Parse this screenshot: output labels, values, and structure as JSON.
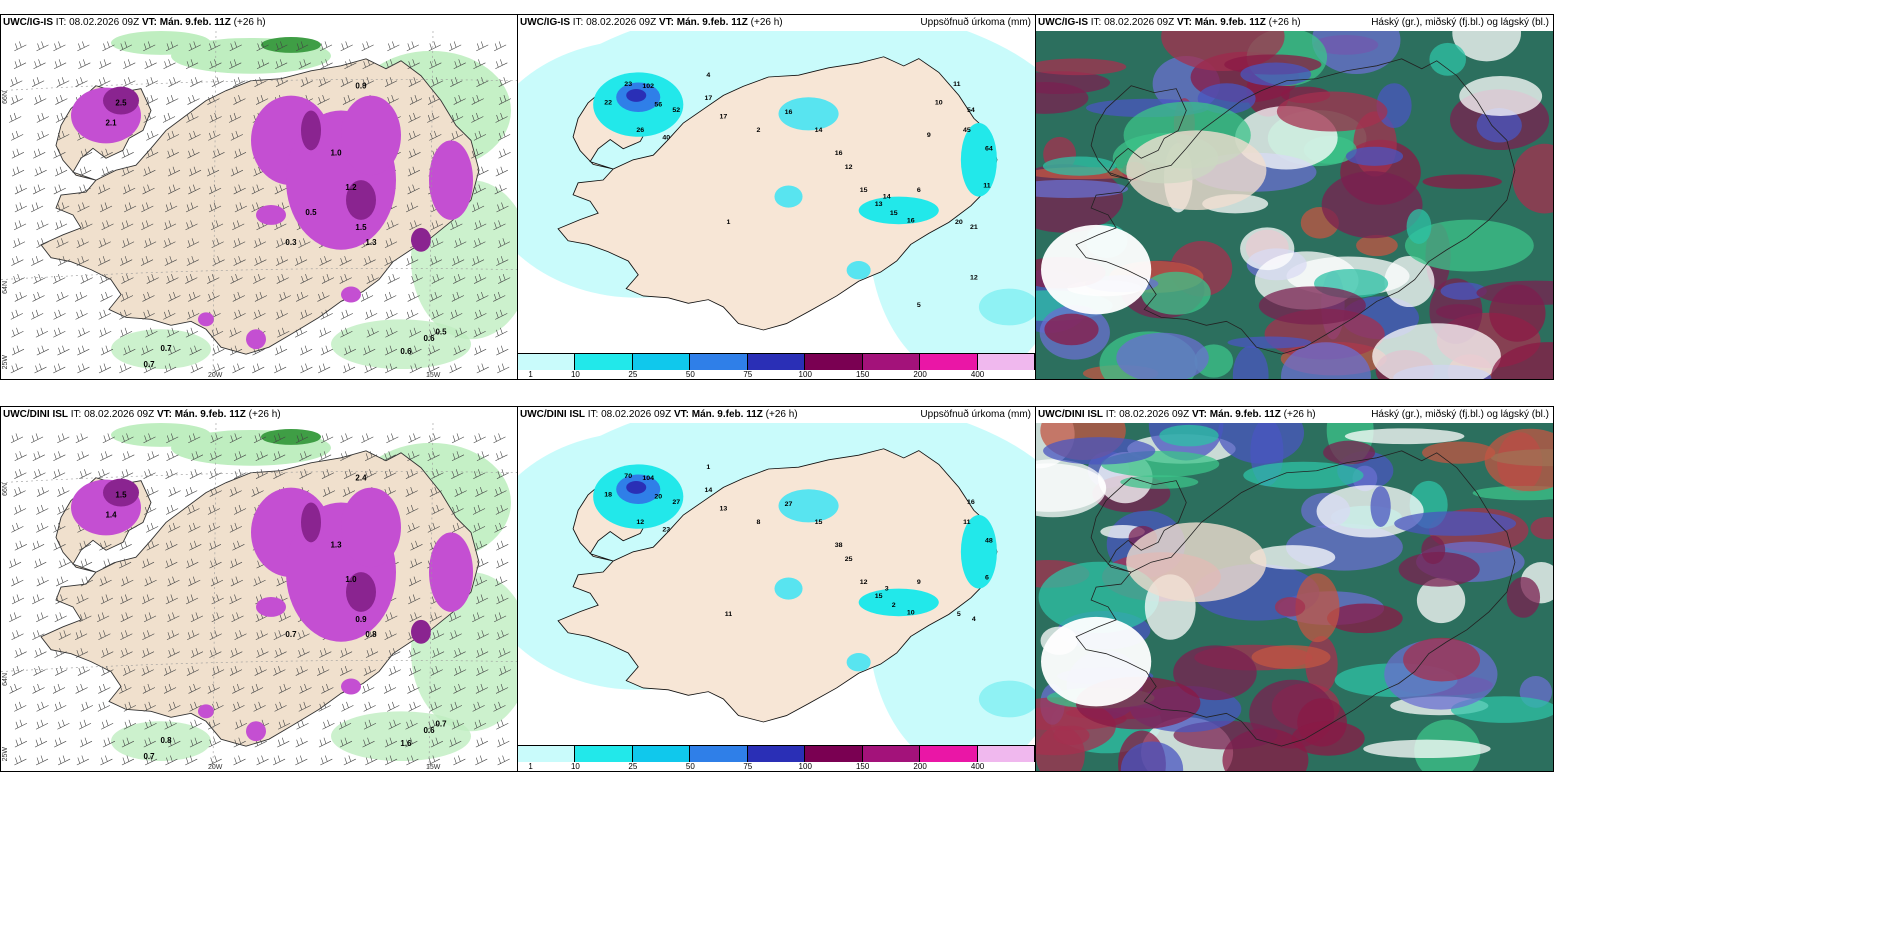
{
  "panels": [
    {
      "model": "UWC/IG-IS",
      "it_label": "IT:",
      "it_value": "08.02.2026 09Z",
      "vt_label": "VT:",
      "vt_value": "Mán. 9.feb. 11Z",
      "lead": "(+26 h)",
      "right": "",
      "type": "snow"
    },
    {
      "model": "UWC/IG-IS",
      "it_label": "IT:",
      "it_value": "08.02.2026 09Z",
      "vt_label": "VT:",
      "vt_value": "Mán. 9.feb. 11Z",
      "lead": "(+26 h)",
      "right": "Uppsöfnuð úrkoma (mm)",
      "type": "precip"
    },
    {
      "model": "UWC/IG-IS",
      "it_label": "IT:",
      "it_value": "08.02.2026 09Z",
      "vt_label": "VT:",
      "vt_value": "Mán. 9.feb. 11Z",
      "lead": "(+26 h)",
      "right": "Háský (gr.), miðský (fj.bl.) og lágský (bl.)",
      "type": "cloud"
    },
    {
      "model": "UWC/DINI ISL",
      "it_label": "IT:",
      "it_value": "08.02.2026 09Z",
      "vt_label": "VT:",
      "vt_value": "Mán. 9.feb. 11Z",
      "lead": "(+26 h)",
      "right": "",
      "type": "snow"
    },
    {
      "model": "UWC/DINI ISL",
      "it_label": "IT:",
      "it_value": "08.02.2026 09Z",
      "vt_label": "VT:",
      "vt_value": "Mán. 9.feb. 11Z",
      "lead": "(+26 h)",
      "right": "Uppsöfnuð úrkoma (mm)",
      "type": "precip"
    },
    {
      "model": "UWC/DINI ISL",
      "it_label": "IT:",
      "it_value": "08.02.2026 09Z",
      "vt_label": "VT:",
      "vt_value": "Mán. 9.feb. 11Z",
      "lead": "(+26 h)",
      "right": "Háský (gr.), miðský (fj.bl.) og lágský (bl.)",
      "type": "cloud"
    }
  ],
  "axis_labels": {
    "lat_66": "66N",
    "lat_64": "64N",
    "lon_25": "25W",
    "lon_20": "20W",
    "lon_15": "15W"
  },
  "colorbar": {
    "ticks": [
      "1",
      "10",
      "25",
      "50",
      "75",
      "100",
      "150",
      "200",
      "400"
    ],
    "colors": [
      "#c9fbfb",
      "#22e8ea",
      "#10c8ec",
      "#2f7fe8",
      "#2a2fb6",
      "#7a0052",
      "#a3127a",
      "#ea16a6",
      "#f0b8ee"
    ]
  },
  "snow_values_top": [
    "0.7",
    "0.7",
    "0.5",
    "0.6",
    "0.6",
    "0.9",
    "1.0",
    "1.2",
    "1.5",
    "2.5",
    "2.1",
    "0.3",
    "1.3",
    "0.5"
  ],
  "snow_values_bottom": [
    "0.8",
    "0.7",
    "0.7",
    "0.6",
    "1.6",
    "2.4",
    "1.3",
    "1.0",
    "0.9",
    "1.5",
    "1.4",
    "0.7",
    "0.8"
  ],
  "precip_values_top": [
    "23",
    "102",
    "56",
    "52",
    "22",
    "26",
    "40",
    "17",
    "17",
    "16",
    "14",
    "16",
    "12",
    "15",
    "13",
    "45",
    "64",
    "54",
    "11",
    "20",
    "21",
    "14",
    "15",
    "16",
    "6",
    "4",
    "2",
    "1",
    "9",
    "10",
    "11",
    "12",
    "5"
  ],
  "precip_values_bottom": [
    "70",
    "104",
    "20",
    "27",
    "18",
    "12",
    "23",
    "14",
    "13",
    "27",
    "15",
    "38",
    "25",
    "12",
    "15",
    "11",
    "48",
    "16",
    "6",
    "5",
    "4",
    "3",
    "2",
    "10",
    "9",
    "1",
    "8",
    "11"
  ]
}
